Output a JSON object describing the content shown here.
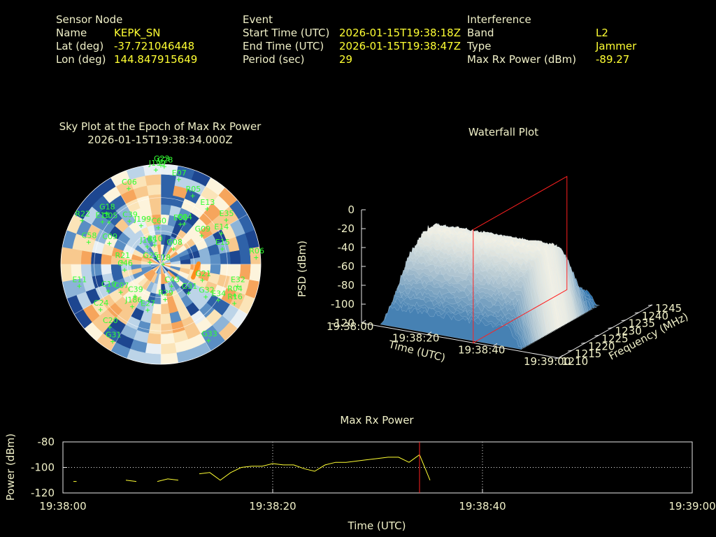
{
  "colors": {
    "background": "#000000",
    "text": "#f0f0c8",
    "value": "#ffff33",
    "satellite": "#33ff33",
    "marker": "#ff2020",
    "trace": "#ffff33"
  },
  "info": {
    "sensor": {
      "heading": "Sensor Node",
      "rows": [
        {
          "label": "Name",
          "value": "KEPK_SN"
        },
        {
          "label": "Lat (deg)",
          "value": "-37.721046448"
        },
        {
          "label": "Lon (deg)",
          "value": "144.847915649"
        }
      ]
    },
    "event": {
      "heading": "Event",
      "rows": [
        {
          "label": "Start Time (UTC)",
          "value": "2026-01-15T19:38:18Z"
        },
        {
          "label": "End Time (UTC)",
          "value": "2026-01-15T19:38:47Z"
        },
        {
          "label": "Period (sec)",
          "value": "29"
        }
      ]
    },
    "interference": {
      "heading": "Interference",
      "rows": [
        {
          "label": "Band",
          "value": "L2"
        },
        {
          "label": "Type",
          "value": "Jammer"
        },
        {
          "label": "Max Rx Power (dBm)",
          "value": "-89.27"
        }
      ]
    }
  },
  "chart_data": [
    {
      "type": "scatter",
      "title": "Sky Plot at the Epoch of Max Rx Power",
      "subtitle": "2026-01-15T19:38:34.000Z",
      "satellites": [
        {
          "id": "G23",
          "az": 0,
          "el": 1
        },
        {
          "id": "G28",
          "az": 2,
          "el": 2
        },
        {
          "id": "J199",
          "az": 357,
          "el": 5
        },
        {
          "id": "E07",
          "az": 12,
          "el": 12
        },
        {
          "id": "C06",
          "az": 337,
          "el": 16
        },
        {
          "id": "R05",
          "az": 25,
          "el": 22
        },
        {
          "id": "E13",
          "az": 40,
          "el": 25
        },
        {
          "id": "G18",
          "az": 313,
          "el": 23
        },
        {
          "id": "R22",
          "az": 299,
          "el": 9
        },
        {
          "id": "C39",
          "az": 324,
          "el": 42
        },
        {
          "id": "C60",
          "az": 356,
          "el": 57
        },
        {
          "id": "E06",
          "az": 26,
          "el": 50
        },
        {
          "id": "C04",
          "az": 30,
          "el": 48
        },
        {
          "id": "E35",
          "az": 56,
          "el": 19
        },
        {
          "id": "E14",
          "az": 63,
          "el": 29
        },
        {
          "id": "J199",
          "az": 333,
          "el": 51
        },
        {
          "id": "G05",
          "az": 309,
          "el": 30
        },
        {
          "id": "E15",
          "az": 306,
          "el": 25
        },
        {
          "id": "J195",
          "az": 322,
          "el": 70
        },
        {
          "id": "R10",
          "az": 342,
          "el": 72
        },
        {
          "id": "G08",
          "az": 40,
          "el": 72
        },
        {
          "id": "G09",
          "az": 55,
          "el": 45
        },
        {
          "id": "C09",
          "az": 292,
          "el": 40
        },
        {
          "id": "E15",
          "az": 76,
          "el": 33
        },
        {
          "id": "R06",
          "az": 86,
          "el": 4
        },
        {
          "id": "C46",
          "az": 261,
          "el": 57
        },
        {
          "id": "E18",
          "az": 89,
          "el": 88
        },
        {
          "id": "G21",
          "az": 111,
          "el": 50
        },
        {
          "id": "R21",
          "az": 273,
          "el": 55
        },
        {
          "id": "G25",
          "az": 280,
          "el": 80
        },
        {
          "id": "C10",
          "az": 243,
          "el": 37
        },
        {
          "id": "C07",
          "az": 235,
          "el": 46
        },
        {
          "id": "C39",
          "az": 219,
          "el": 53
        },
        {
          "id": "E32",
          "az": 106,
          "el": 18
        },
        {
          "id": "J186",
          "az": 214,
          "el": 44
        },
        {
          "id": "E27",
          "az": 196,
          "el": 47
        },
        {
          "id": "C43",
          "az": 154,
          "el": 68
        },
        {
          "id": "R29",
          "az": 173,
          "el": 58
        },
        {
          "id": "G32",
          "az": 126,
          "el": 40
        },
        {
          "id": "G31",
          "az": 136,
          "el": 54
        },
        {
          "id": "E34",
          "az": 122,
          "el": 29
        },
        {
          "id": "R04",
          "az": 113,
          "el": 18
        },
        {
          "id": "R16",
          "az": 118,
          "el": 15
        },
        {
          "id": "C20",
          "az": 219,
          "el": 17
        },
        {
          "id": "G31",
          "az": 212,
          "el": 8
        },
        {
          "id": "C24",
          "az": 233,
          "el": 22
        },
        {
          "id": "E11",
          "az": 255,
          "el": 14
        },
        {
          "id": "G33",
          "az": 148,
          "el": 9
        },
        {
          "id": "C58",
          "az": 287,
          "el": 22
        }
      ],
      "jammer": {
        "az": 100,
        "el": 58
      }
    },
    {
      "type": "area",
      "title": "Waterfall Plot",
      "xlabel": "Time (UTC)",
      "ylabel": "Frequency (MHz)",
      "zlabel": "PSD (dBm)",
      "x_ticks": [
        "19:38:00",
        "19:38:20",
        "19:38:40",
        "19:39:00"
      ],
      "y_ticks": [
        "1210",
        "1215",
        "1220",
        "1225",
        "1230",
        "1235",
        "1240",
        "1245"
      ],
      "z_ticks": [
        "0",
        "-20",
        "-40",
        "-60",
        "-80",
        "-100",
        "-120"
      ],
      "xlim": [
        0,
        60
      ],
      "ylim": [
        1210,
        1245
      ],
      "zlim": [
        -120,
        0
      ],
      "marker_time": "19:38:34",
      "profile": [
        {
          "f": 1210,
          "p": -105
        },
        {
          "f": 1213,
          "p": -88
        },
        {
          "f": 1217,
          "p": -60
        },
        {
          "f": 1221,
          "p": -45
        },
        {
          "f": 1225,
          "p": -38
        },
        {
          "f": 1228,
          "p": -40
        },
        {
          "f": 1231,
          "p": -48
        },
        {
          "f": 1234,
          "p": -70
        },
        {
          "f": 1237,
          "p": -98
        },
        {
          "f": 1240,
          "p": -108
        }
      ]
    },
    {
      "type": "line",
      "title": "Max Rx Power",
      "xlabel": "Time (UTC)",
      "ylabel": "Power (dBm)",
      "x_ticks": [
        "19:38:00",
        "19:38:20",
        "19:38:40",
        "19:39:00"
      ],
      "y_ticks": [
        "-80",
        "-100",
        "-120"
      ],
      "xlim": [
        0,
        60
      ],
      "ylim": [
        -120,
        -80
      ],
      "marker_time": "19:38:34",
      "segments": [
        [
          [
            1,
            -111
          ],
          [
            1.3,
            -111
          ]
        ],
        [
          [
            6,
            -110
          ],
          [
            7,
            -111
          ]
        ],
        [
          [
            9,
            -111
          ],
          [
            10,
            -109
          ],
          [
            11,
            -110
          ]
        ],
        [
          [
            13,
            -105
          ],
          [
            14,
            -104
          ],
          [
            15,
            -110
          ],
          [
            16,
            -104
          ],
          [
            17,
            -100
          ],
          [
            18,
            -99
          ],
          [
            19,
            -99
          ],
          [
            20,
            -97
          ],
          [
            21,
            -98
          ],
          [
            22,
            -98
          ],
          [
            23,
            -101
          ],
          [
            24,
            -103
          ],
          [
            25,
            -98
          ],
          [
            26,
            -96
          ],
          [
            27,
            -96
          ],
          [
            28,
            -95
          ],
          [
            29,
            -94
          ],
          [
            30,
            -93
          ],
          [
            31,
            -92
          ],
          [
            32,
            -92
          ],
          [
            33,
            -96
          ],
          [
            34,
            -90
          ],
          [
            35,
            -110
          ]
        ]
      ]
    }
  ]
}
